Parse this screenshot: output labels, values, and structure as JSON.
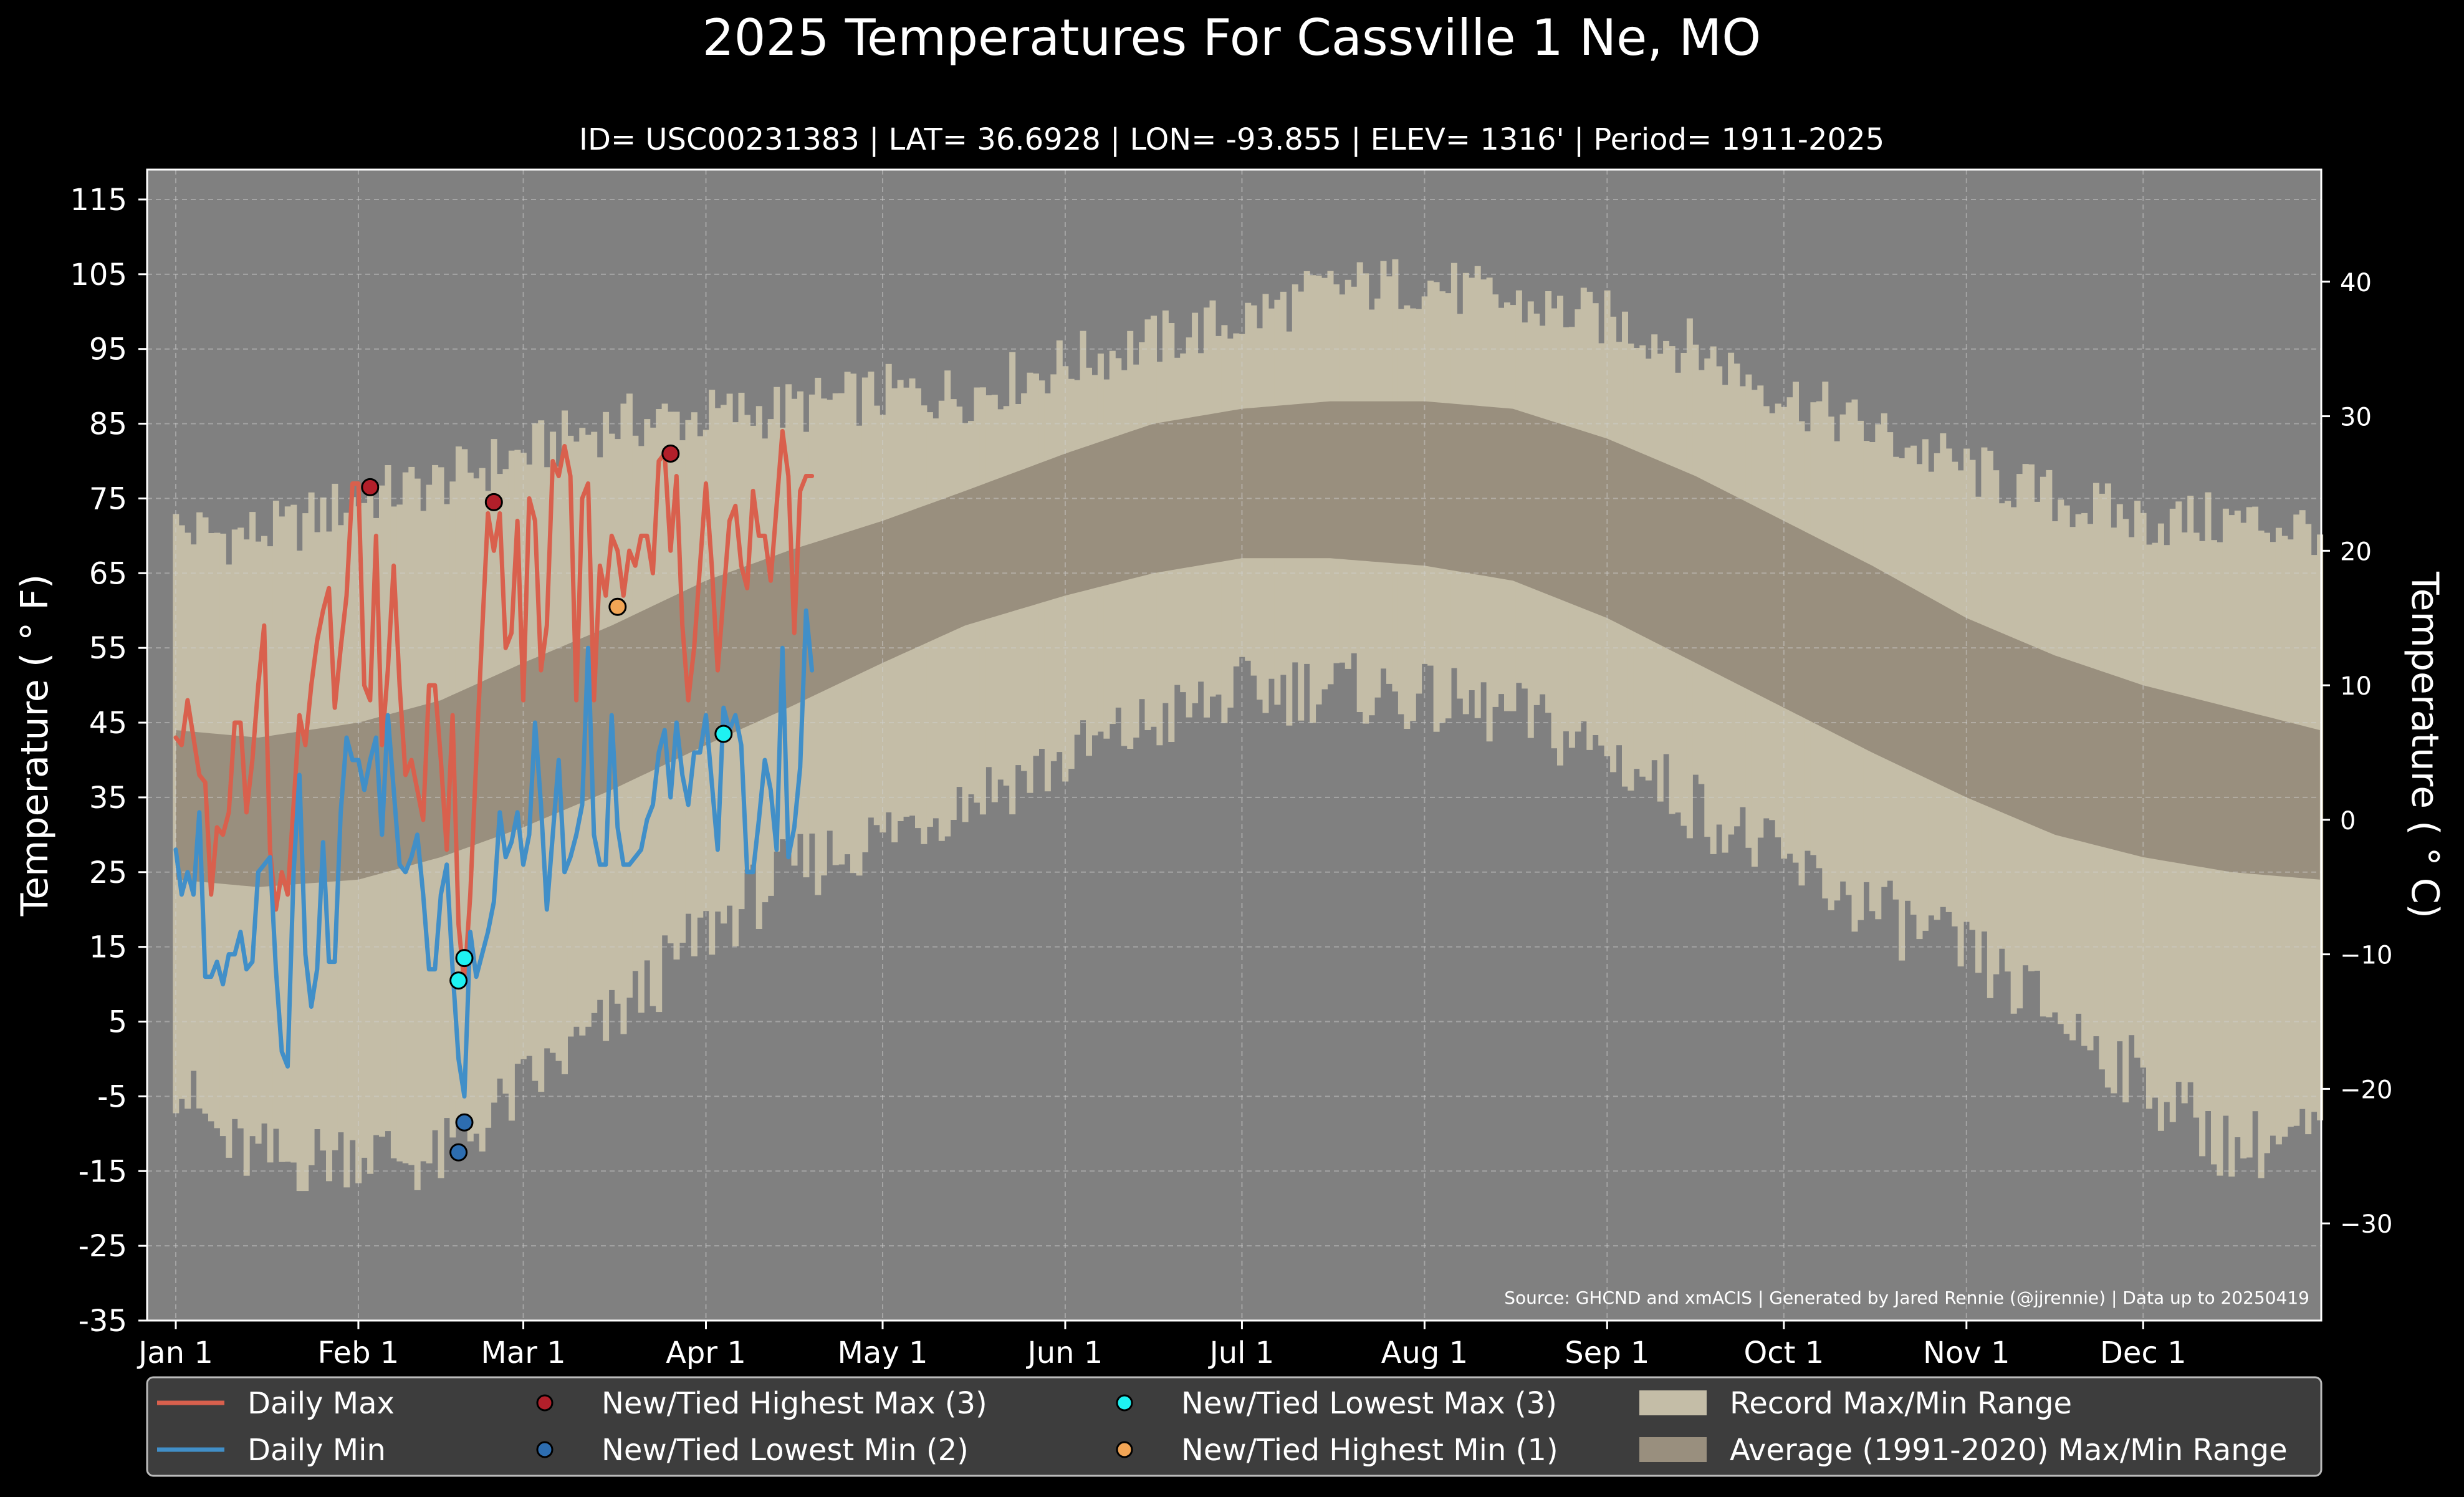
{
  "chart_data": {
    "type": "line",
    "title": "2025 Temperatures For Cassville 1 Ne, MO",
    "subtitle": "ID= USC00231383 | LAT= 36.6928 | LON= -93.855 | ELEV= 1316' | Period= 1911-2025",
    "ylabel": "Temperature ($^\\circ$F)",
    "ylabel_display": "Temperature ( ° F)",
    "y2label_display": "Temperature ( ° C)",
    "source": "Source: GHCND and xmACIS | Generated by Jared Rennie (@jjrennie) | Data up to 20250419",
    "ylim": [
      -35,
      119
    ],
    "y_ticks": [
      "115",
      "105",
      "95",
      "85",
      "75",
      "65",
      "55",
      "45",
      "35",
      "25",
      "15",
      "5",
      "-5",
      "-15",
      "-25",
      "-35"
    ],
    "y2_ticks": [
      "40",
      "30",
      "20",
      "10",
      "0",
      "−10",
      "−20",
      "−30"
    ],
    "x_ticks": [
      {
        "label": "Jan 1",
        "day": 1
      },
      {
        "label": "Feb 1",
        "day": 32
      },
      {
        "label": "Mar 1",
        "day": 60
      },
      {
        "label": "Apr 1",
        "day": 91
      },
      {
        "label": "May 1",
        "day": 121
      },
      {
        "label": "Jun 1",
        "day": 152
      },
      {
        "label": "Jul 1",
        "day": 182
      },
      {
        "label": "Aug 1",
        "day": 213
      },
      {
        "label": "Sep 1",
        "day": 244
      },
      {
        "label": "Oct 1",
        "day": 274
      },
      {
        "label": "Nov 1",
        "day": 305
      },
      {
        "label": "Dec 1",
        "day": 335
      }
    ],
    "grid": true,
    "legend_position": "bottom",
    "colors": {
      "background": "#000000",
      "plot_bg": "#808080",
      "record_range": "#c4bda7",
      "normal_range": "#998f7e",
      "daily_max": "#d9604d",
      "daily_min": "#418fc8",
      "highest_max": "#b21f2a",
      "lowest_min": "#2d6db0",
      "lowest_max": "#1ef2f2",
      "highest_min": "#f2a555"
    },
    "record_max_anchors": {
      "day": [
        1,
        10,
        20,
        32,
        45,
        60,
        75,
        91,
        105,
        121,
        135,
        152,
        167,
        182,
        197,
        213,
        228,
        244,
        259,
        274,
        289,
        305,
        320,
        335,
        350,
        365
      ],
      "value": [
        71,
        70,
        71,
        75,
        77,
        81,
        85,
        86,
        87,
        89,
        89,
        93,
        96,
        99,
        103,
        104,
        101,
        99,
        95,
        89,
        84,
        79,
        75,
        72,
        72,
        71
      ]
    },
    "record_min_anchors": {
      "day": [
        1,
        10,
        20,
        32,
        45,
        60,
        75,
        91,
        105,
        121,
        135,
        152,
        167,
        182,
        197,
        213,
        228,
        244,
        259,
        274,
        289,
        305,
        320,
        335,
        350,
        365
      ],
      "value": [
        -3,
        -12,
        -14,
        -12,
        -14,
        -4,
        5,
        17,
        25,
        30,
        35,
        40,
        45,
        49,
        50,
        48,
        46,
        41,
        34,
        26,
        20,
        14,
        6,
        -3,
        -12,
        -10
      ]
    },
    "normal_max_anchors": {
      "day": [
        1,
        15,
        32,
        46,
        60,
        75,
        91,
        105,
        121,
        135,
        152,
        167,
        182,
        197,
        213,
        228,
        244,
        259,
        274,
        289,
        305,
        320,
        335,
        350,
        365
      ],
      "value": [
        44,
        43,
        45,
        48,
        53,
        58,
        64,
        68,
        72,
        76,
        81,
        85,
        87,
        88,
        88,
        87,
        83,
        78,
        72,
        66,
        59,
        54,
        50,
        47,
        44
      ]
    },
    "normal_min_anchors": {
      "day": [
        1,
        15,
        32,
        46,
        60,
        75,
        91,
        105,
        121,
        135,
        152,
        167,
        182,
        197,
        213,
        228,
        244,
        259,
        274,
        289,
        305,
        320,
        335,
        350,
        365
      ],
      "value": [
        24,
        23,
        24,
        27,
        31,
        36,
        42,
        47,
        53,
        58,
        62,
        65,
        67,
        67,
        66,
        64,
        59,
        53,
        47,
        41,
        35,
        30,
        27,
        25,
        24
      ]
    },
    "series": [
      {
        "name": "Daily Max",
        "start_day": 1,
        "values": [
          43,
          42,
          48,
          43,
          38,
          37,
          22,
          31,
          30,
          33,
          45,
          45,
          33,
          40,
          50,
          58,
          28,
          20,
          25,
          22,
          34,
          46,
          42,
          50,
          56,
          60,
          63,
          47,
          55,
          62,
          77,
          77,
          50,
          48,
          70,
          42,
          52,
          66,
          50,
          38,
          40,
          36,
          32,
          50,
          50,
          40,
          28,
          46,
          18,
          10,
          22,
          40,
          57,
          73,
          68,
          73,
          55,
          57,
          72,
          48,
          75,
          72,
          52,
          58,
          80,
          78,
          82,
          78,
          48,
          75,
          77,
          48,
          66,
          62,
          70,
          68,
          62,
          68,
          66,
          70,
          70,
          65,
          80,
          81,
          68,
          78,
          58,
          48,
          55,
          66,
          77,
          66,
          52,
          62,
          72,
          74,
          66,
          63,
          76,
          70,
          70,
          64,
          74,
          84,
          78,
          57,
          76,
          78,
          78
        ]
      },
      {
        "name": "Daily Min",
        "start_day": 1,
        "values": [
          28,
          22,
          25,
          22,
          33,
          11,
          11,
          13,
          10,
          14,
          14,
          17,
          12,
          13,
          25,
          26,
          27,
          12,
          1,
          -1,
          25,
          38,
          14,
          7,
          12,
          29,
          13,
          13,
          33,
          43,
          40,
          40,
          36,
          40,
          43,
          30,
          46,
          36,
          26,
          25,
          27,
          30,
          22,
          12,
          12,
          22,
          26,
          12,
          0,
          -5,
          17,
          11,
          14,
          17,
          21,
          33,
          27,
          29,
          33,
          26,
          30,
          45,
          34,
          20,
          30,
          40,
          25,
          27,
          30,
          34,
          55,
          30,
          26,
          26,
          46,
          31,
          26,
          26,
          27,
          28,
          32,
          34,
          41,
          44,
          35,
          45,
          38,
          34,
          41,
          41,
          46,
          37,
          28,
          47,
          44,
          46,
          42,
          25,
          25,
          32,
          40,
          36,
          28,
          55,
          27,
          31,
          39,
          60,
          52
        ]
      }
    ],
    "record_markers": [
      {
        "name": "New/Tied Highest Max",
        "count": "(3)",
        "points": [
          {
            "day": 34,
            "value": 76.5
          },
          {
            "day": 55,
            "value": 74.5
          },
          {
            "day": 85,
            "value": 81
          }
        ]
      },
      {
        "name": "New/Tied Lowest Min",
        "count": "(2)",
        "points": [
          {
            "day": 50,
            "value": -8.5
          },
          {
            "day": 49,
            "value": -12.5
          }
        ]
      },
      {
        "name": "New/Tied Lowest Max",
        "count": "(3)",
        "points": [
          {
            "day": 50,
            "value": 13.5
          },
          {
            "day": 49,
            "value": 10.5
          },
          {
            "day": 94,
            "value": 43.5
          }
        ]
      },
      {
        "name": "New/Tied Highest Min",
        "count": "(1)",
        "points": [
          {
            "day": 76,
            "value": 60.5
          }
        ]
      }
    ],
    "legend": [
      {
        "label": "Daily Max",
        "kind": "line",
        "color_key": "daily_max"
      },
      {
        "label": "Daily Min",
        "kind": "line",
        "color_key": "daily_min"
      },
      {
        "label": "New/Tied Highest Max (3)",
        "kind": "dot",
        "color_key": "highest_max"
      },
      {
        "label": "New/Tied Lowest Min (2)",
        "kind": "dot",
        "color_key": "lowest_min"
      },
      {
        "label": "New/Tied Lowest Max (3)",
        "kind": "dot",
        "color_key": "lowest_max"
      },
      {
        "label": "New/Tied Highest Min (1)",
        "kind": "dot",
        "color_key": "highest_min"
      },
      {
        "label": "Record Max/Min Range",
        "kind": "patch",
        "color_key": "record_range"
      },
      {
        "label": "Average (1991-2020) Max/Min Range",
        "kind": "patch",
        "color_key": "normal_range"
      }
    ]
  }
}
